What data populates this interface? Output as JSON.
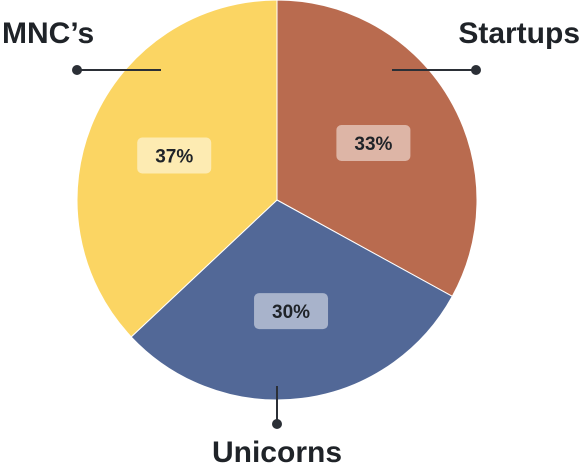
{
  "chart_data": {
    "type": "pie",
    "categories": [
      "Startups",
      "Unicorns",
      "MNC’s"
    ],
    "values": [
      33,
      30,
      37
    ],
    "value_labels": [
      "33%",
      "30%",
      "37%"
    ],
    "colors": [
      "#B96B4F",
      "#526897",
      "#FBD563"
    ],
    "badge_colors": [
      "#DDB5A6",
      "#A8B3CB",
      "#FDEBB2"
    ],
    "title": "",
    "legend": "callout-lines",
    "start_angle_deg": 0,
    "direction": "clockwise"
  }
}
